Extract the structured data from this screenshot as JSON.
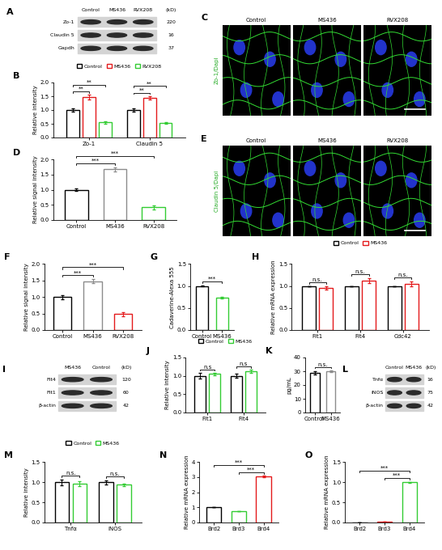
{
  "blots": [
    {
      "panel": "A",
      "lanes": [
        "Control",
        "MS436",
        "RVX208"
      ],
      "unit": "(kD)",
      "rows": [
        {
          "name": "Zo-1",
          "kd": 220
        },
        {
          "name": "Claudin 5",
          "kd": 16
        },
        {
          "name": "Gapdh",
          "kd": 37
        }
      ]
    },
    {
      "panel": "I",
      "lanes": [
        "MS436",
        "Control"
      ],
      "unit": "(kD)",
      "rows": [
        {
          "name": "Flt4",
          "kd": 120
        },
        {
          "name": "Flt1",
          "kd": 60
        },
        {
          "name": "β-actin",
          "kd": 42
        }
      ]
    },
    {
      "panel": "L",
      "lanes": [
        "Control",
        "MS436"
      ],
      "unit": "(kD)",
      "rows": [
        {
          "name": "Tnfα",
          "kd": 16
        },
        {
          "name": "iNOS",
          "kd": 75
        },
        {
          "name": "β-actin",
          "kd": 42
        }
      ]
    }
  ],
  "images": [
    {
      "panel": "C",
      "conditions": [
        "Control",
        "MS436",
        "RVX208"
      ],
      "stain": "Zo-1/Dapi"
    },
    {
      "panel": "E",
      "conditions": [
        "Control",
        "MS436",
        "RVX208"
      ],
      "stain": "Claudin 5/Dapi"
    }
  ],
  "chart_data": [
    {
      "panel": "B",
      "type": "bar",
      "categories": [
        "Zo-1",
        "Claudin 5"
      ],
      "series": [
        {
          "name": "Control",
          "color": "#000000",
          "values": [
            1.0,
            1.0
          ],
          "errors": [
            0.06,
            0.07
          ]
        },
        {
          "name": "MS436",
          "color": "#e41a1c",
          "values": [
            1.47,
            1.45
          ],
          "errors": [
            0.08,
            0.06
          ]
        },
        {
          "name": "RVX208",
          "color": "#33cc33",
          "values": [
            0.55,
            0.53
          ],
          "errors": [
            0.05,
            0.04
          ]
        }
      ],
      "ylabel": "Relative intensity",
      "ylim": [
        0,
        2
      ],
      "yticks": [
        {
          "value": 0,
          "label": "0.0"
        },
        {
          "value": 0.5,
          "label": "0.5"
        },
        {
          "value": 1,
          "label": "1.0"
        },
        {
          "value": 1.5,
          "label": "1.5"
        },
        {
          "value": 2,
          "label": "2.0"
        }
      ],
      "legend": "upper center",
      "annotations": [
        {
          "text": "**",
          "category": "Zo-1",
          "pair": [
            "Control",
            "MS436"
          ]
        },
        {
          "text": "**",
          "category": "Zo-1",
          "pair": [
            "Control",
            "RVX208"
          ]
        },
        {
          "text": "**",
          "category": "Claudin 5",
          "pair": [
            "Control",
            "MS436"
          ]
        },
        {
          "text": "**",
          "category": "Claudin 5",
          "pair": [
            "Control",
            "RVX208"
          ]
        }
      ]
    },
    {
      "panel": "D",
      "type": "bar",
      "categories": [
        "Control",
        "MS436",
        "RVX208"
      ],
      "values": [
        1.0,
        1.68,
        0.42
      ],
      "errors": [
        0.05,
        0.07,
        0.06
      ],
      "colors": [
        "#000000",
        "#8c8c8c",
        "#33cc33"
      ],
      "ylabel": "Relative signal intensity",
      "ylim": [
        0,
        2
      ],
      "yticks": [
        {
          "value": 0,
          "label": "0.0"
        },
        {
          "value": 0.5,
          "label": "0.5"
        },
        {
          "value": 1,
          "label": "1.0"
        },
        {
          "value": 1.5,
          "label": "1.5"
        },
        {
          "value": 2,
          "label": "2.0"
        }
      ],
      "annotations": [
        {
          "text": "***",
          "pair": [
            "Control",
            "MS436"
          ]
        },
        {
          "text": "***",
          "pair": [
            "Control",
            "RVX208"
          ]
        }
      ]
    },
    {
      "panel": "F",
      "type": "bar",
      "categories": [
        "Control",
        "MS436",
        "RVX208"
      ],
      "values": [
        1.0,
        1.48,
        0.48
      ],
      "errors": [
        0.06,
        0.06,
        0.07
      ],
      "colors": [
        "#000000",
        "#8c8c8c",
        "#e41a1c"
      ],
      "ylabel": "Relative signal intensity",
      "ylim": [
        0,
        2
      ],
      "yticks": [
        {
          "value": 0,
          "label": "0.0"
        },
        {
          "value": 0.5,
          "label": "0.5"
        },
        {
          "value": 1,
          "label": "1.0"
        },
        {
          "value": 1.5,
          "label": "1.5"
        },
        {
          "value": 2,
          "label": "2.0"
        }
      ],
      "annotations": [
        {
          "text": "***",
          "pair": [
            "Control",
            "MS436"
          ]
        },
        {
          "text": "***",
          "pair": [
            "Control",
            "RVX208"
          ]
        }
      ]
    },
    {
      "panel": "G",
      "type": "bar",
      "categories": [
        "Control",
        "MS436"
      ],
      "values": [
        1.0,
        0.73
      ],
      "errors": [
        0.01,
        0.02
      ],
      "colors": [
        "#000000",
        "#33cc33"
      ],
      "ylabel": "Cadaverine-Alexa 555",
      "ylim": [
        0,
        1.5
      ],
      "yticks": [
        {
          "value": 0,
          "label": "0.0"
        },
        {
          "value": 0.5,
          "label": "0.5"
        },
        {
          "value": 1,
          "label": "1.0"
        },
        {
          "value": 1.5,
          "label": "1.5"
        }
      ],
      "annotations": [
        {
          "text": "***",
          "pair": [
            "Control",
            "MS436"
          ]
        }
      ]
    },
    {
      "panel": "H",
      "type": "bar",
      "categories": [
        "Flt1",
        "Flt4",
        "Cdc42"
      ],
      "series": [
        {
          "name": "Control",
          "color": "#000000",
          "values": [
            1.0,
            1.0,
            1.0
          ],
          "errors": [
            0.0,
            0.0,
            0.0
          ]
        },
        {
          "name": "MS436",
          "color": "#e41a1c",
          "values": [
            0.95,
            1.12,
            1.05
          ],
          "errors": [
            0.04,
            0.06,
            0.05
          ]
        }
      ],
      "ylabel": "Relative mRNA expression",
      "ylim": [
        0,
        1.5
      ],
      "yticks": [
        {
          "value": 0,
          "label": "0.0"
        },
        {
          "value": 0.5,
          "label": "0.5"
        },
        {
          "value": 1,
          "label": "1.0"
        },
        {
          "value": 1.5,
          "label": "1.5"
        }
      ],
      "legend": "upper center",
      "annotations": [
        {
          "text": "n.s.",
          "category": "Flt1"
        },
        {
          "text": "n.s.",
          "category": "Flt4"
        },
        {
          "text": "n.s.",
          "category": "Cdc42"
        }
      ]
    },
    {
      "panel": "J",
      "type": "bar",
      "categories": [
        "Flt1",
        "Flt4"
      ],
      "series": [
        {
          "name": "Control",
          "color": "#000000",
          "values": [
            1.0,
            1.0
          ],
          "errors": [
            0.07,
            0.05
          ]
        },
        {
          "name": "MS436",
          "color": "#33cc33",
          "values": [
            1.05,
            1.12
          ],
          "errors": [
            0.04,
            0.04
          ]
        }
      ],
      "ylabel": "Relative intensity",
      "ylim": [
        0,
        1.5
      ],
      "yticks": [
        {
          "value": 0,
          "label": "0.0"
        },
        {
          "value": 0.5,
          "label": "0.5"
        },
        {
          "value": 1,
          "label": "1.0"
        },
        {
          "value": 1.5,
          "label": "1.5"
        }
      ],
      "legend": "upper center",
      "annotations": [
        {
          "text": "n.s",
          "category": "Flt1"
        },
        {
          "text": "n.s",
          "category": "Flt4"
        }
      ]
    },
    {
      "panel": "K",
      "type": "bar",
      "categories": [
        "Control",
        "MS436"
      ],
      "values": [
        29,
        30
      ],
      "errors": [
        1.2,
        0.8
      ],
      "colors": [
        "#000000",
        "#8c8c8c"
      ],
      "ylabel": "pg/mL",
      "ylim": [
        0,
        40
      ],
      "yticks": [
        0,
        10,
        20,
        30,
        40
      ],
      "annotations": [
        {
          "text": "n.s.",
          "pair": [
            "Control",
            "MS436"
          ]
        }
      ]
    },
    {
      "panel": "M",
      "type": "bar",
      "categories": [
        "Tnfα",
        "iNOS"
      ],
      "series": [
        {
          "name": "Control",
          "color": "#000000",
          "values": [
            1.0,
            1.0
          ],
          "errors": [
            0.07,
            0.05
          ]
        },
        {
          "name": "MS436",
          "color": "#33cc33",
          "values": [
            0.97,
            0.94
          ],
          "errors": [
            0.06,
            0.03
          ]
        }
      ],
      "ylabel": "Relative intensity",
      "ylim": [
        0,
        1.5
      ],
      "yticks": [
        {
          "value": 0,
          "label": "0.0"
        },
        {
          "value": 0.5,
          "label": "0.5"
        },
        {
          "value": 1,
          "label": "1.0"
        },
        {
          "value": 1.5,
          "label": "1.5"
        }
      ],
      "legend": "upper center",
      "annotations": [
        {
          "text": "n.s.",
          "category": "Tnfα"
        },
        {
          "text": "n.s.",
          "category": "iNOS"
        }
      ]
    },
    {
      "panel": "N",
      "type": "bar",
      "categories": [
        "Brd2",
        "Brd3",
        "Brd4"
      ],
      "values": [
        1.0,
        0.75,
        3.05
      ],
      "errors": [
        0.01,
        0.02,
        0.04
      ],
      "colors": [
        "#000000",
        "#33cc33",
        "#e41a1c"
      ],
      "ylabel": "Relative mRNA expression",
      "ylim": [
        0,
        4
      ],
      "yticks": [
        0,
        1,
        2,
        3,
        4
      ],
      "annotations": [
        {
          "text": "***",
          "pair": [
            "Brd3",
            "Brd4"
          ]
        },
        {
          "text": "***",
          "pair": [
            "Brd2",
            "Brd4"
          ]
        }
      ]
    },
    {
      "panel": "O",
      "type": "bar",
      "categories": [
        "Brd2",
        "Brd3",
        "Brd4"
      ],
      "values": [
        0.005,
        0.02,
        1.0
      ],
      "errors": [
        0.002,
        0.005,
        0.01
      ],
      "colors": [
        "#000000",
        "#e41a1c",
        "#33cc33"
      ],
      "ylabel": "Relative mRNA expression",
      "ylim": [
        0,
        1.5
      ],
      "yticks": [
        {
          "value": 0,
          "label": "0.0"
        },
        {
          "value": 0.5,
          "label": "0.5"
        },
        {
          "value": 1,
          "label": "1.0"
        },
        {
          "value": 1.5,
          "label": "1.5"
        }
      ],
      "annotations": [
        {
          "text": "***",
          "pair": [
            "Brd3",
            "Brd4"
          ]
        },
        {
          "text": "***",
          "pair": [
            "Brd2",
            "Brd4"
          ]
        }
      ]
    }
  ]
}
